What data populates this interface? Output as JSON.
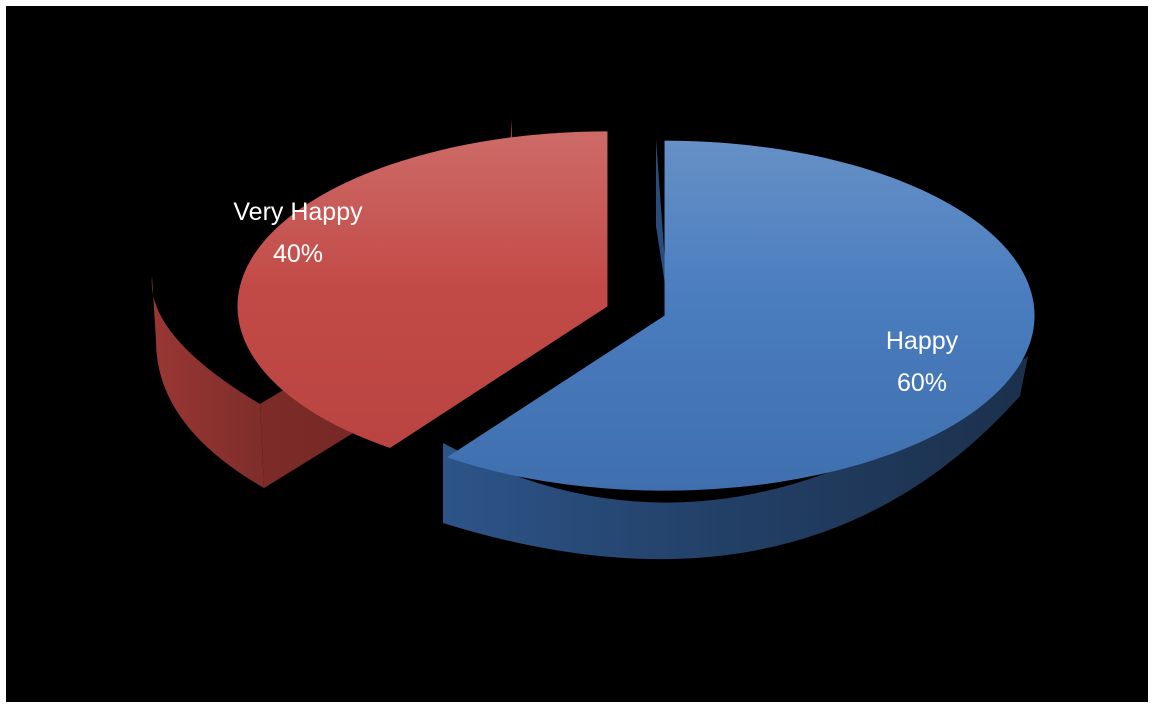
{
  "chart_data": {
    "type": "pie",
    "style": "3d-exploded",
    "title": "",
    "slices": [
      {
        "label": "Happy",
        "value": 60,
        "display": "60%",
        "color": "#4a7dbf",
        "side_color": "#223d60"
      },
      {
        "label": "Very Happy",
        "value": 40,
        "display": "40%",
        "color": "#c0504d",
        "side_color": "#7a2a27"
      }
    ],
    "legend": "none",
    "background": "#000000"
  }
}
